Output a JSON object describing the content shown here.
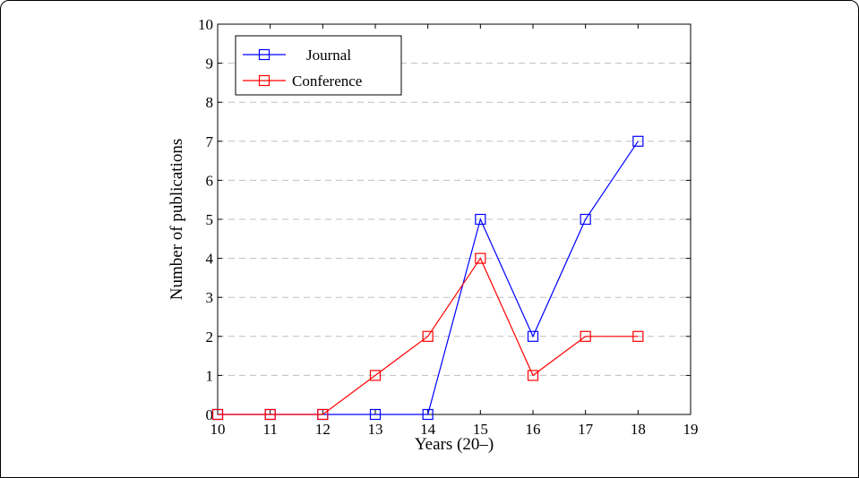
{
  "chart_data": {
    "type": "line",
    "xlabel": "Years (20–)",
    "ylabel": "Number of publications",
    "xlim": [
      10,
      19
    ],
    "ylim": [
      0,
      10
    ],
    "xticks": [
      10,
      11,
      12,
      13,
      14,
      15,
      16,
      17,
      18,
      19
    ],
    "yticks": [
      0,
      1,
      2,
      3,
      4,
      5,
      6,
      7,
      8,
      9,
      10
    ],
    "grid": "horizontal-dashed",
    "legend_position": "top-left",
    "x": [
      10,
      11,
      12,
      13,
      14,
      15,
      16,
      17,
      18
    ],
    "series": [
      {
        "name": "Journal",
        "color": "#0000ff",
        "marker": "square",
        "values": [
          0,
          0,
          0,
          0,
          0,
          5,
          2,
          5,
          7
        ]
      },
      {
        "name": "Conference",
        "color": "#ff0000",
        "marker": "square",
        "values": [
          0,
          0,
          0,
          1,
          2,
          4,
          1,
          2,
          2
        ]
      }
    ]
  }
}
